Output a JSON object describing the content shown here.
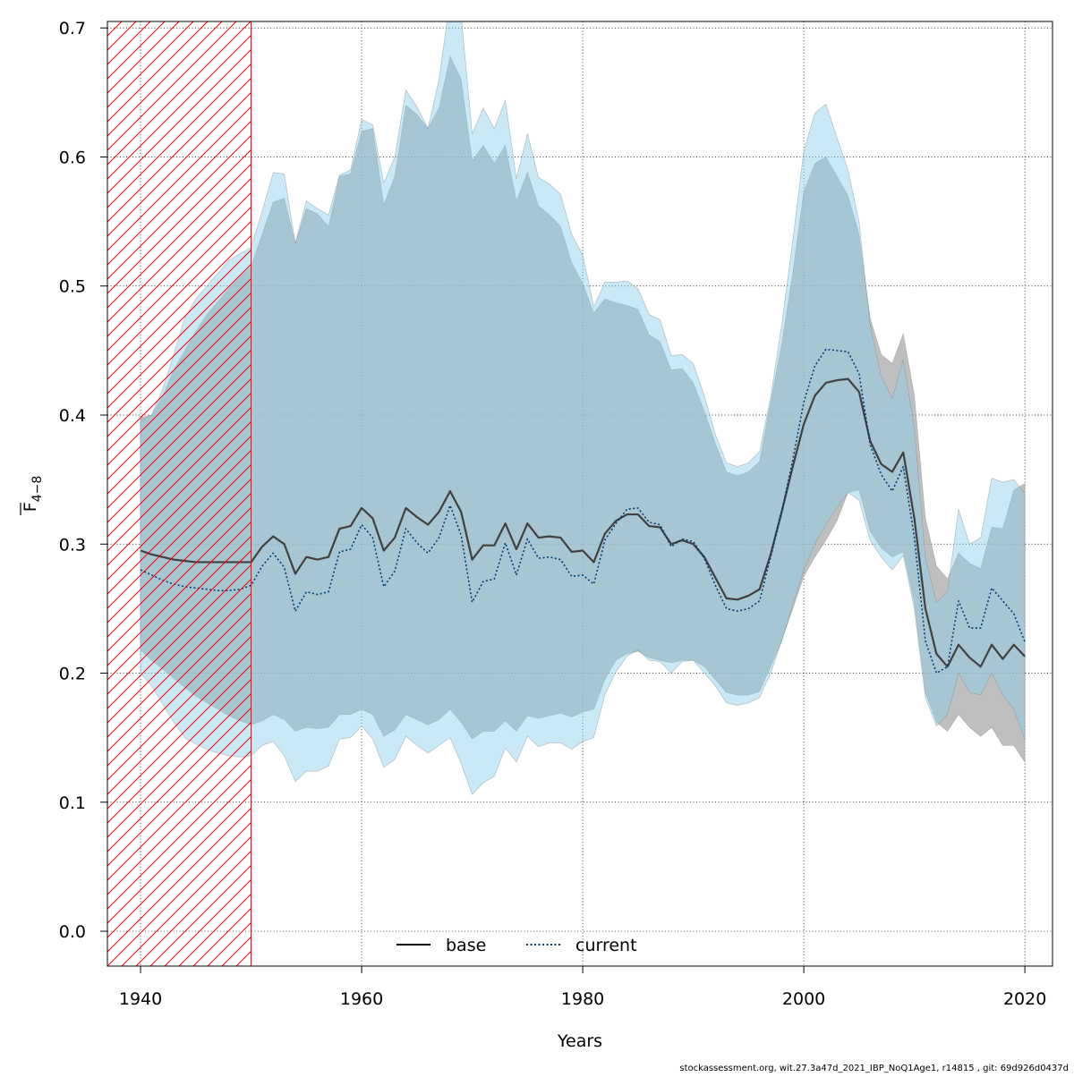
{
  "chart_data": {
    "type": "area",
    "xlabel": "Years",
    "ylabel_main": "F",
    "ylabel_sub": "4−8",
    "xlim": [
      1937,
      2022.5
    ],
    "ylim": [
      -0.027,
      0.705
    ],
    "x_ticks": [
      1940,
      1960,
      1980,
      2000,
      2020
    ],
    "y_ticks": [
      0.0,
      0.1,
      0.2,
      0.3,
      0.4,
      0.5,
      0.6,
      0.7
    ],
    "y_tick_labels": [
      "0.0",
      "0.1",
      "0.2",
      "0.3",
      "0.4",
      "0.5",
      "0.6",
      "0.7"
    ],
    "grid": true,
    "hatched_region": {
      "x_start": 1937,
      "x_end": 1950,
      "color": "#ff0000"
    },
    "legend": {
      "placement": "bottom-center",
      "entries": [
        "base",
        "current"
      ]
    },
    "x": [
      1940,
      1941,
      1942,
      1943,
      1944,
      1945,
      1946,
      1947,
      1948,
      1949,
      1950,
      1951,
      1952,
      1953,
      1954,
      1955,
      1956,
      1957,
      1958,
      1959,
      1960,
      1961,
      1962,
      1963,
      1964,
      1965,
      1966,
      1967,
      1968,
      1969,
      1970,
      1971,
      1972,
      1973,
      1974,
      1975,
      1976,
      1977,
      1978,
      1979,
      1980,
      1981,
      1982,
      1983,
      1984,
      1985,
      1986,
      1987,
      1988,
      1989,
      1990,
      1991,
      1992,
      1993,
      1994,
      1995,
      1996,
      1997,
      1998,
      1999,
      2000,
      2001,
      2002,
      2003,
      2004,
      2005,
      2006,
      2007,
      2008,
      2009,
      2010,
      2011,
      2012,
      2013,
      2014,
      2015,
      2016,
      2017,
      2018,
      2019,
      2020
    ],
    "series": [
      {
        "name": "base",
        "color": "#404040",
        "band_color": "#a9a9a9",
        "line_style": "solid",
        "values": [
          0.295,
          0.292,
          0.29,
          0.288,
          0.287,
          0.286,
          0.286,
          0.286,
          0.286,
          0.286,
          0.286,
          0.298,
          0.306,
          0.3,
          0.277,
          0.29,
          0.288,
          0.29,
          0.312,
          0.314,
          0.328,
          0.32,
          0.295,
          0.305,
          0.328,
          0.321,
          0.315,
          0.325,
          0.341,
          0.325,
          0.288,
          0.299,
          0.299,
          0.316,
          0.296,
          0.316,
          0.305,
          0.306,
          0.305,
          0.294,
          0.295,
          0.286,
          0.308,
          0.318,
          0.323,
          0.323,
          0.314,
          0.313,
          0.3,
          0.303,
          0.3,
          0.29,
          0.274,
          0.258,
          0.257,
          0.26,
          0.265,
          0.292,
          0.325,
          0.36,
          0.393,
          0.415,
          0.425,
          0.427,
          0.428,
          0.418,
          0.38,
          0.362,
          0.356,
          0.371,
          0.32,
          0.25,
          0.215,
          0.205,
          0.222,
          0.212,
          0.205,
          0.222,
          0.211,
          0.222,
          0.213
        ],
        "lower": [
          0.218,
          0.21,
          0.203,
          0.196,
          0.189,
          0.182,
          0.177,
          0.172,
          0.167,
          0.163,
          0.16,
          0.163,
          0.168,
          0.164,
          0.155,
          0.158,
          0.157,
          0.158,
          0.168,
          0.168,
          0.172,
          0.168,
          0.151,
          0.156,
          0.168,
          0.164,
          0.16,
          0.164,
          0.172,
          0.162,
          0.149,
          0.155,
          0.155,
          0.163,
          0.155,
          0.167,
          0.165,
          0.167,
          0.169,
          0.166,
          0.17,
          0.172,
          0.195,
          0.21,
          0.215,
          0.217,
          0.212,
          0.21,
          0.208,
          0.21,
          0.21,
          0.205,
          0.195,
          0.185,
          0.183,
          0.183,
          0.186,
          0.205,
          0.225,
          0.25,
          0.275,
          0.29,
          0.303,
          0.318,
          0.34,
          0.342,
          0.31,
          0.297,
          0.29,
          0.294,
          0.255,
          0.185,
          0.162,
          0.155,
          0.168,
          0.158,
          0.151,
          0.158,
          0.144,
          0.144,
          0.131
        ],
        "upper": [
          0.398,
          0.4,
          0.415,
          0.435,
          0.45,
          0.465,
          0.478,
          0.488,
          0.498,
          0.507,
          0.515,
          0.54,
          0.565,
          0.568,
          0.533,
          0.56,
          0.556,
          0.546,
          0.585,
          0.587,
          0.62,
          0.622,
          0.563,
          0.585,
          0.64,
          0.633,
          0.622,
          0.638,
          0.678,
          0.66,
          0.597,
          0.609,
          0.595,
          0.609,
          0.566,
          0.588,
          0.562,
          0.555,
          0.546,
          0.518,
          0.502,
          0.479,
          0.49,
          0.487,
          0.485,
          0.482,
          0.462,
          0.457,
          0.435,
          0.436,
          0.425,
          0.403,
          0.378,
          0.356,
          0.353,
          0.356,
          0.364,
          0.41,
          0.455,
          0.51,
          0.573,
          0.595,
          0.6,
          0.585,
          0.57,
          0.54,
          0.475,
          0.447,
          0.44,
          0.463,
          0.415,
          0.32,
          0.283,
          0.273,
          0.293,
          0.285,
          0.281,
          0.313,
          0.312,
          0.342,
          0.347
        ]
      },
      {
        "name": "current",
        "color": "#003a73",
        "band_color": "#87ceeb",
        "line_style": "dotted",
        "values": [
          0.28,
          0.276,
          0.272,
          0.269,
          0.267,
          0.266,
          0.265,
          0.264,
          0.264,
          0.265,
          0.268,
          0.283,
          0.293,
          0.282,
          0.248,
          0.263,
          0.261,
          0.263,
          0.294,
          0.296,
          0.315,
          0.305,
          0.267,
          0.279,
          0.312,
          0.301,
          0.293,
          0.305,
          0.33,
          0.307,
          0.255,
          0.271,
          0.273,
          0.301,
          0.276,
          0.304,
          0.289,
          0.29,
          0.288,
          0.275,
          0.276,
          0.269,
          0.303,
          0.316,
          0.327,
          0.328,
          0.317,
          0.315,
          0.298,
          0.304,
          0.302,
          0.289,
          0.268,
          0.25,
          0.248,
          0.25,
          0.256,
          0.29,
          0.325,
          0.365,
          0.41,
          0.438,
          0.451,
          0.45,
          0.449,
          0.432,
          0.377,
          0.354,
          0.341,
          0.36,
          0.305,
          0.225,
          0.2,
          0.205,
          0.256,
          0.235,
          0.235,
          0.266,
          0.256,
          0.246,
          0.224
        ],
        "lower": [
          0.2,
          0.19,
          0.176,
          0.162,
          0.15,
          0.145,
          0.141,
          0.138,
          0.136,
          0.135,
          0.136,
          0.144,
          0.147,
          0.136,
          0.116,
          0.124,
          0.124,
          0.128,
          0.149,
          0.15,
          0.159,
          0.149,
          0.127,
          0.133,
          0.151,
          0.144,
          0.138,
          0.144,
          0.15,
          0.13,
          0.106,
          0.115,
          0.12,
          0.142,
          0.131,
          0.151,
          0.143,
          0.146,
          0.146,
          0.141,
          0.147,
          0.15,
          0.183,
          0.201,
          0.213,
          0.218,
          0.21,
          0.209,
          0.2,
          0.209,
          0.21,
          0.2,
          0.19,
          0.177,
          0.175,
          0.177,
          0.181,
          0.2,
          0.225,
          0.253,
          0.28,
          0.3,
          0.315,
          0.328,
          0.34,
          0.334,
          0.303,
          0.29,
          0.28,
          0.291,
          0.25,
          0.181,
          0.159,
          0.168,
          0.2,
          0.185,
          0.183,
          0.2,
          0.183,
          0.172,
          0.148
        ],
        "upper": [
          0.395,
          0.4,
          0.42,
          0.447,
          0.475,
          0.49,
          0.5,
          0.51,
          0.52,
          0.525,
          0.53,
          0.558,
          0.588,
          0.587,
          0.533,
          0.566,
          0.56,
          0.555,
          0.586,
          0.59,
          0.629,
          0.625,
          0.58,
          0.6,
          0.652,
          0.639,
          0.622,
          0.66,
          0.722,
          0.71,
          0.618,
          0.638,
          0.622,
          0.644,
          0.583,
          0.618,
          0.584,
          0.579,
          0.571,
          0.54,
          0.524,
          0.484,
          0.503,
          0.503,
          0.504,
          0.498,
          0.478,
          0.474,
          0.446,
          0.447,
          0.44,
          0.415,
          0.385,
          0.363,
          0.36,
          0.363,
          0.372,
          0.414,
          0.47,
          0.535,
          0.605,
          0.634,
          0.641,
          0.615,
          0.59,
          0.55,
          0.47,
          0.43,
          0.413,
          0.443,
          0.39,
          0.29,
          0.255,
          0.263,
          0.327,
          0.3,
          0.305,
          0.351,
          0.348,
          0.35,
          0.339
        ]
      }
    ]
  },
  "footer": {
    "text": "stockassessment.org, wit.27.3a47d_2021_IBP_NoQ1Age1, r14815 , git: 69d926d0437d"
  }
}
